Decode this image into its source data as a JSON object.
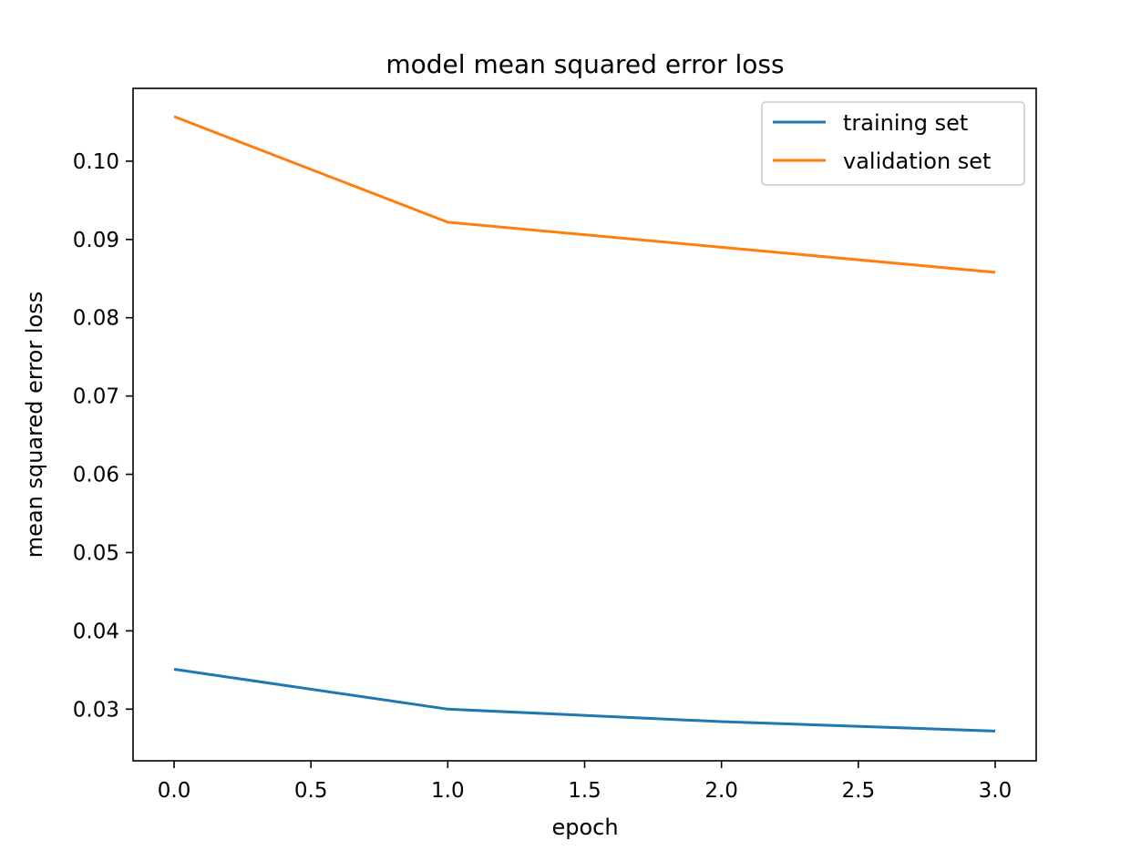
{
  "chart_data": {
    "type": "line",
    "title": "model mean squared error loss",
    "xlabel": "epoch",
    "ylabel": "mean squared error loss",
    "xlim": [
      -0.15,
      3.15
    ],
    "ylim": [
      0.0234,
      0.1093
    ],
    "x_ticks": [
      0.0,
      0.5,
      1.0,
      1.5,
      2.0,
      2.5,
      3.0
    ],
    "x_tick_labels": [
      "0.0",
      "0.5",
      "1.0",
      "1.5",
      "2.0",
      "2.5",
      "3.0"
    ],
    "y_ticks": [
      0.03,
      0.04,
      0.05,
      0.06,
      0.07,
      0.08,
      0.09,
      0.1
    ],
    "y_tick_labels": [
      "0.03",
      "0.04",
      "0.05",
      "0.06",
      "0.07",
      "0.08",
      "0.09",
      "0.10"
    ],
    "grid": false,
    "legend_position": "top-right",
    "x": [
      0,
      1,
      2,
      3
    ],
    "series": [
      {
        "name": "training set",
        "color": "#1f77b4",
        "values": [
          0.0351,
          0.03,
          0.0284,
          0.0272
        ]
      },
      {
        "name": "validation set",
        "color": "#ff7f0e",
        "values": [
          0.1057,
          0.0922,
          0.089,
          0.0858
        ]
      }
    ]
  }
}
